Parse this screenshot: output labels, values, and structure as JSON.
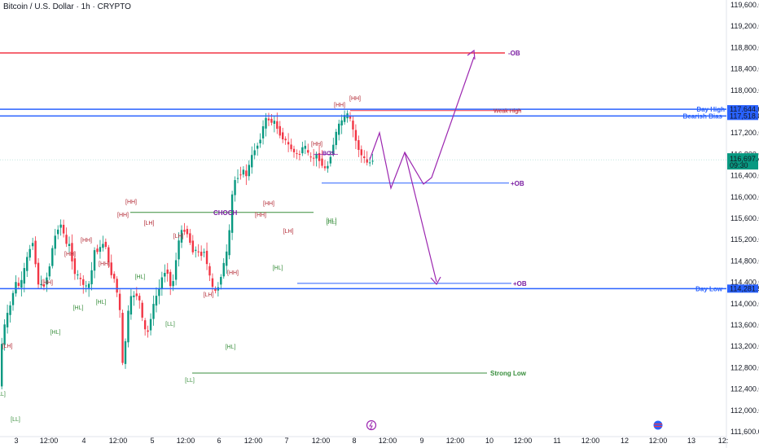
{
  "header": {
    "title": "Bitcoin / U.S. Dollar · 1h · CRYPTO"
  },
  "chart_data": {
    "type": "candlestick",
    "symbol": "BTCUSD",
    "interval": "1h",
    "price_axis": {
      "min": 111600,
      "max": 119600,
      "ticks": [
        "119,600.00",
        "119,200.00",
        "118,800.00",
        "118,400.00",
        "118,000.00",
        "117,600.00",
        "117,200.00",
        "116,800.00",
        "116,400.00",
        "116,000.00",
        "115,600.00",
        "115,200.00",
        "114,800.00",
        "114,400.00",
        "114,000.00",
        "113,600.00",
        "113,200.00",
        "112,800.00",
        "112,400.00",
        "112,000.00",
        "111,600.00"
      ]
    },
    "time_axis": {
      "ticks": [
        "3",
        "12:00",
        "4",
        "12:00",
        "5",
        "12:00",
        "6",
        "12:00",
        "7",
        "12:00",
        "8",
        "12:00",
        "9",
        "12:00",
        "10",
        "12:00",
        "11",
        "12:00",
        "12",
        "12:00",
        "13",
        "12:"
      ]
    },
    "current_price": {
      "label": "116,697.46",
      "countdown": "09:30",
      "value": 116697.46,
      "color": "#089981"
    },
    "levels": [
      {
        "name": "-OB",
        "value": 118700,
        "color": "#f23645",
        "label_price": ""
      },
      {
        "name": "Day High",
        "value": 117644.68,
        "color": "#2962ff",
        "label_price": "117,644.68"
      },
      {
        "name": "Bearish Bias",
        "value": 117518.8,
        "color": "#2962ff",
        "label_price": "117,518.80"
      },
      {
        "name": "Day Low",
        "value": 114281.99,
        "color": "#2962ff",
        "label_price": "114,281.99"
      }
    ],
    "annotations": [
      {
        "text": "Weak High",
        "color": "#b22833"
      },
      {
        "text": "CHOCH",
        "color": "#7b1fa2"
      },
      {
        "text": "BOS",
        "color": "#7b1fa2"
      },
      {
        "text": "+OB",
        "color": "#7b1fa2"
      },
      {
        "text": "+OB",
        "color": "#7b1fa2"
      },
      {
        "text": "Strong Low",
        "color": "#388e3c"
      }
    ],
    "structure_labels": [
      "[HH]",
      "[HH]",
      "[HH]",
      "[HH]",
      "[HH]",
      "[HH]",
      "[LH]",
      "[LH]",
      "[LH]",
      "[HH]",
      "[HH]",
      "[HH]",
      "[LH]",
      "[HH]",
      "[HH]",
      "[HH]",
      "[HL]",
      "[HL]",
      "[HL]",
      "[HL]",
      "[HL]",
      "[LL]",
      "[LL]",
      "[LL]",
      "[LL]",
      "[LH]",
      "[HL]",
      "[HL]",
      "[HL]"
    ],
    "candle_colors": {
      "up": "#089981",
      "down": "#f23645"
    },
    "projection_color": "#9c27b0"
  }
}
